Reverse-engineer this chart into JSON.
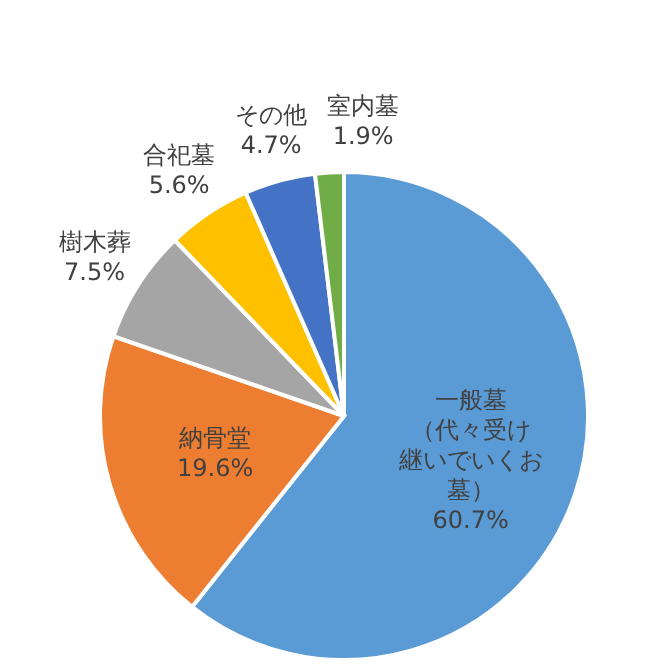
{
  "chart_data": {
    "type": "pie",
    "categories": [
      "一般墓（代々受け継いでいくお墓）",
      "納骨堂",
      "樹木葬",
      "合祀墓",
      "その他",
      "室内墓"
    ],
    "values": [
      60.7,
      19.6,
      7.5,
      5.6,
      4.7,
      1.9
    ],
    "colors": [
      "#5b9bd5",
      "#ed7d31",
      "#a5a5a5",
      "#ffc000",
      "#4472c4",
      "#70ad47"
    ],
    "value_labels": [
      "60.7%",
      "19.6%",
      "7.5%",
      "5.6%",
      "4.7%",
      "1.9%"
    ]
  }
}
